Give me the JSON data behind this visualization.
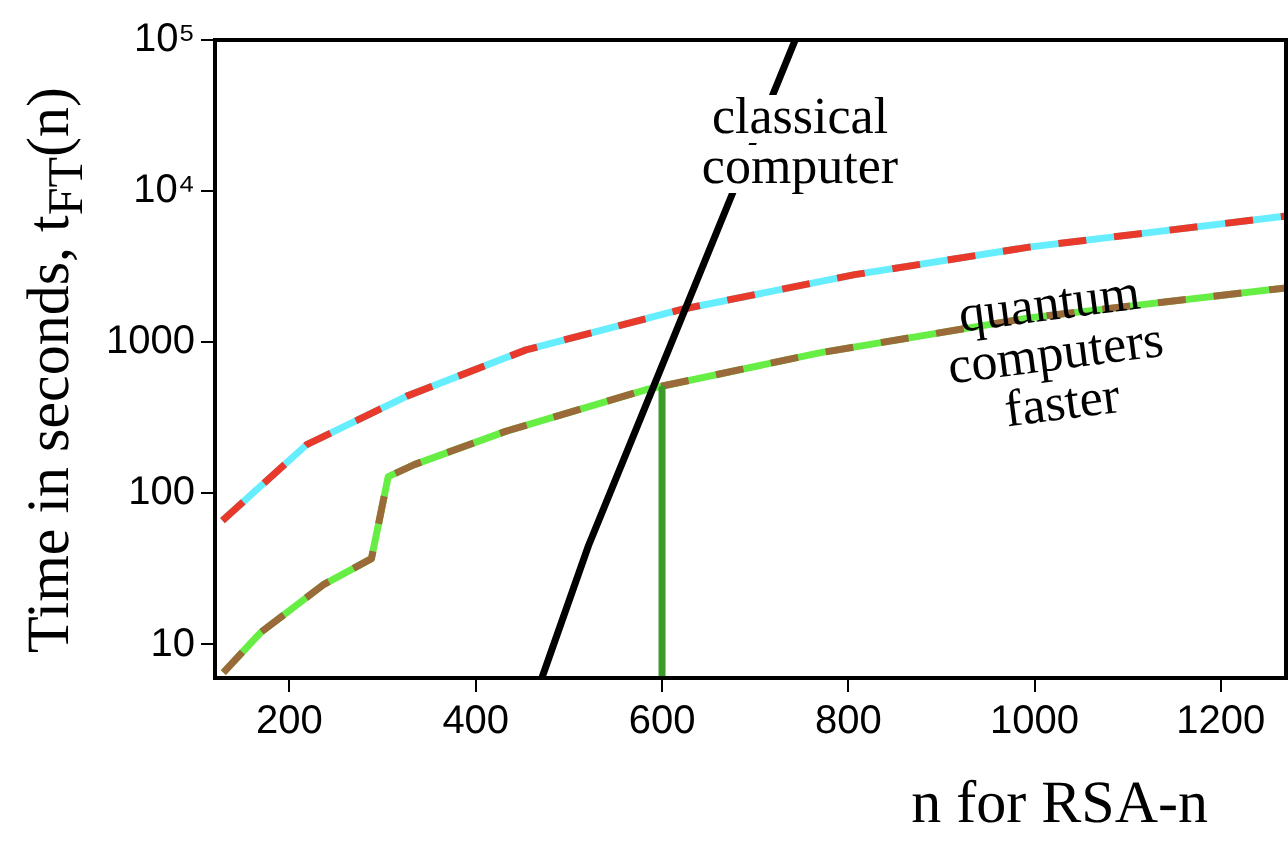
{
  "chart_data": {
    "type": "line",
    "xlabel": "n for RSA-n",
    "ylabel": "Time in seconds,  t$_{FT}$(n)",
    "xlim": [
      120,
      1270
    ],
    "xticks": [
      200,
      400,
      600,
      800,
      1000,
      1200
    ],
    "ylim": [
      6,
      100000
    ],
    "yticks": [
      10,
      100,
      1000,
      {
        "value": 10000,
        "label": "10⁴"
      },
      {
        "value": 100000,
        "label": "10⁵"
      }
    ],
    "log": "y",
    "grid": false,
    "legend": false,
    "marker": "none",
    "series": [
      {
        "color": "#66eeff",
        "line_style": "solid",
        "x": [
          128,
          218,
          326,
          454,
          623,
          807,
          994,
          1270
        ],
        "values": [
          66,
          209,
          440,
          890,
          1660,
          2800,
          4260,
          6840
        ]
      },
      {
        "color": "#e8392a",
        "line_style": "dashed",
        "x": [
          128,
          218,
          326,
          454,
          623,
          807,
          994,
          1270
        ],
        "values": [
          66,
          209,
          440,
          890,
          1660,
          2800,
          4260,
          6840
        ]
      },
      {
        "color": "#66ee44",
        "line_style": "solid",
        "x": [
          129,
          169,
          237,
          288,
          306,
          334,
          432,
          585,
          769,
          994,
          1270
        ],
        "values": [
          6.5,
          12,
          25,
          37,
          129,
          155,
          257,
          490,
          850,
          1450,
          2290
        ]
      },
      {
        "color": "#9a6a3a",
        "line_style": "dashed",
        "x": [
          129,
          169,
          237,
          288,
          306,
          334,
          432,
          585,
          769,
          994,
          1270
        ],
        "values": [
          6.5,
          12,
          25,
          37,
          129,
          155,
          257,
          490,
          850,
          1450,
          2290
        ]
      },
      {
        "color": "#000000",
        "line_style": "solid",
        "x": [
          471,
          521,
          672,
          743
        ],
        "values": [
          6,
          45,
          8500,
          100000
        ]
      },
      {
        "color": "#3a9a2a",
        "line_style": "solid",
        "x": [
          600,
          600
        ],
        "values": [
          490,
          6
        ]
      }
    ],
    "annotations": [
      "classical computer",
      "quantum computers faster"
    ]
  }
}
